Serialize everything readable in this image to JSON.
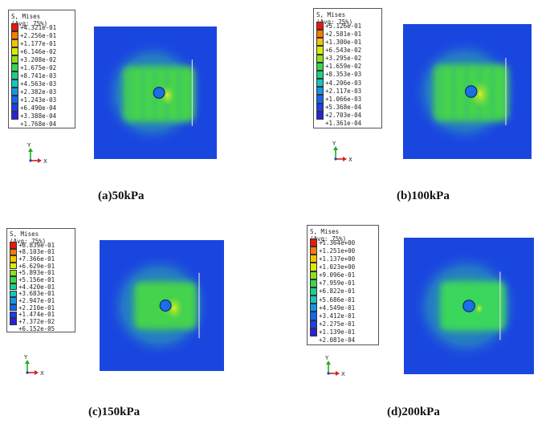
{
  "colors": {
    "background_field": "#1a46e0",
    "mid_field": "#3fd45a",
    "hot_field": "#e4f027"
  },
  "legend_colors": [
    "#e8190c",
    "#ff7a00",
    "#f5c400",
    "#d6ee00",
    "#8be21a",
    "#36d84a",
    "#1ad08a",
    "#14c6c0",
    "#1296e8",
    "#1466f0",
    "#1a3ef0",
    "#2a22d8"
  ],
  "panels": [
    {
      "id": "a",
      "caption": "(a)50kPa",
      "legend": {
        "title": "S, Mises",
        "subtitle": "(Avg: 75%)",
        "values": [
          "+4.321e-01",
          "+2.256e-01",
          "+1.177e-01",
          "+6.146e-02",
          "+3.208e-02",
          "+1.675e-02",
          "+8.741e-03",
          "+4.563e-03",
          "+2.382e-03",
          "+1.243e-03",
          "+6.490e-04",
          "+3.388e-04",
          "+1.768e-04"
        ]
      },
      "axis": {
        "y": "Y",
        "x": "X"
      }
    },
    {
      "id": "b",
      "caption": "(b)100kPa",
      "legend": {
        "title": "S, Mises",
        "subtitle": "(Avg: 75%)",
        "values": [
          "+5.126e-01",
          "+2.581e-01",
          "+1.300e-01",
          "+6.543e-02",
          "+3.295e-02",
          "+1.659e-02",
          "+8.353e-03",
          "+4.206e-03",
          "+2.117e-03",
          "+1.066e-03",
          "+5.368e-04",
          "+2.703e-04",
          "+1.361e-04"
        ]
      },
      "axis": {
        "y": "Y",
        "x": "X"
      }
    },
    {
      "id": "c",
      "caption": "(c)150kPa",
      "legend": {
        "title": "S, Mises",
        "subtitle": "(Avg: 75%)",
        "values": [
          "+8.839e-01",
          "+8.103e-01",
          "+7.366e-01",
          "+6.629e-01",
          "+5.893e-01",
          "+5.156e-01",
          "+4.420e-01",
          "+3.683e-01",
          "+2.947e-01",
          "+2.210e-01",
          "+1.474e-01",
          "+7.372e-02",
          "+6.152e-05"
        ]
      },
      "axis": {
        "y": "Y",
        "x": "X"
      }
    },
    {
      "id": "d",
      "caption": "(d)200kPa",
      "legend": {
        "title": "S, Mises",
        "subtitle": "(Avg: 75%)",
        "values": [
          "+1.364e+00",
          "+1.251e+00",
          "+1.137e+00",
          "+1.023e+00",
          "+9.096e-01",
          "+7.959e-01",
          "+6.822e-01",
          "+5.686e-01",
          "+4.549e-01",
          "+3.412e-01",
          "+2.275e-01",
          "+1.139e-01",
          "+2.081e-04"
        ]
      },
      "axis": {
        "y": "Y",
        "x": "X"
      }
    }
  ]
}
